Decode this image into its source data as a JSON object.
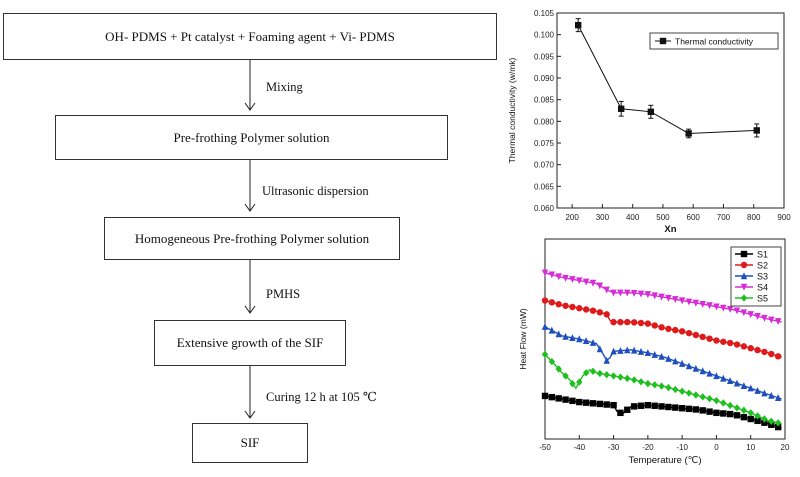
{
  "flowchart": {
    "steps": [
      "OH- PDMS + Pt catalyst + Foaming agent + Vi- PDMS",
      "Pre-frothing Polymer solution",
      "Homogeneous Pre-frothing Polymer solution",
      "Extensive growth of the SIF",
      "SIF"
    ],
    "arrow_labels": [
      "Mixing",
      "Ultrasonic dispersion",
      "PMHS",
      "Curing 12 h at 105 ℃"
    ]
  },
  "chart_data": [
    {
      "type": "line",
      "title": "",
      "xlabel": "Xn",
      "ylabel": "Thermal conductivity (w/mk)",
      "xlim": [
        150,
        900
      ],
      "ylim": [
        0.06,
        0.105
      ],
      "xticks": [
        200,
        300,
        400,
        500,
        600,
        700,
        800,
        900
      ],
      "yticks": [
        0.06,
        0.065,
        0.07,
        0.075,
        0.08,
        0.085,
        0.09,
        0.095,
        0.1,
        0.105
      ],
      "legend": "top-right",
      "series": [
        {
          "name": "Thermal conductivity",
          "color": "#111111",
          "x": [
            220,
            362,
            460,
            585,
            810
          ],
          "y": [
            0.1022,
            0.0829,
            0.0822,
            0.0772,
            0.0779
          ],
          "error": [
            0.0015,
            0.0017,
            0.0015,
            0.001,
            0.0015
          ]
        }
      ]
    },
    {
      "type": "line",
      "title": "",
      "xlabel": "Temperature (℃)",
      "ylabel": "Heat Flow (mW)",
      "xlim": [
        -50,
        20
      ],
      "xticks": [
        -50,
        -40,
        -30,
        -20,
        -10,
        0,
        10,
        20
      ],
      "legend": "top-right",
      "series": [
        {
          "name": "S1",
          "color": "#000000",
          "marker": "square",
          "x": [
            -50,
            -45,
            -40,
            -35,
            -30,
            -29,
            -28,
            -27,
            -25,
            -20,
            -15,
            -10,
            -5,
            0,
            5,
            10,
            15,
            19
          ],
          "y": [
            0.13,
            0.11,
            0.09,
            0.08,
            0.07,
            0.03,
            0.02,
            0.02,
            0.06,
            0.07,
            0.06,
            0.05,
            0.04,
            0.02,
            0.01,
            -0.02,
            -0.05,
            -0.08
          ]
        },
        {
          "name": "S2",
          "color": "#e0191b",
          "marker": "circle",
          "x": [
            -50,
            -45,
            -40,
            -35,
            -32,
            -31,
            -30,
            -25,
            -20,
            -15,
            -10,
            -5,
            0,
            5,
            10,
            15,
            19
          ],
          "y": [
            0.75,
            0.72,
            0.7,
            0.68,
            0.66,
            0.62,
            0.61,
            0.61,
            0.6,
            0.57,
            0.55,
            0.52,
            0.49,
            0.47,
            0.44,
            0.41,
            0.38
          ]
        },
        {
          "name": "S3",
          "color": "#1f4fbf",
          "marker": "triangle-up",
          "x": [
            -50,
            -45,
            -40,
            -35,
            -33,
            -32,
            -31,
            -30,
            -25,
            -20,
            -15,
            -10,
            -5,
            0,
            5,
            10,
            15,
            19
          ],
          "y": [
            0.58,
            0.52,
            0.5,
            0.47,
            0.4,
            0.36,
            0.38,
            0.42,
            0.43,
            0.41,
            0.38,
            0.34,
            0.3,
            0.26,
            0.22,
            0.18,
            0.14,
            0.11
          ]
        },
        {
          "name": "S4",
          "color": "#d62bd6",
          "marker": "triangle-down",
          "x": [
            -50,
            -45,
            -40,
            -35,
            -32,
            -30,
            -25,
            -20,
            -15,
            -10,
            -5,
            0,
            5,
            10,
            15,
            19
          ],
          "y": [
            0.93,
            0.9,
            0.88,
            0.86,
            0.82,
            0.8,
            0.8,
            0.79,
            0.77,
            0.75,
            0.73,
            0.71,
            0.69,
            0.66,
            0.63,
            0.61
          ]
        },
        {
          "name": "S5",
          "color": "#1fbf1f",
          "marker": "diamond",
          "x": [
            -50,
            -47,
            -45,
            -43,
            -41,
            -39,
            -37,
            -35,
            -30,
            -25,
            -20,
            -15,
            -10,
            -5,
            0,
            5,
            10,
            15,
            19
          ],
          "y": [
            0.4,
            0.33,
            0.28,
            0.24,
            0.18,
            0.26,
            0.3,
            0.28,
            0.26,
            0.24,
            0.21,
            0.19,
            0.16,
            0.13,
            0.1,
            0.06,
            0.02,
            -0.03,
            -0.05
          ]
        }
      ]
    }
  ]
}
